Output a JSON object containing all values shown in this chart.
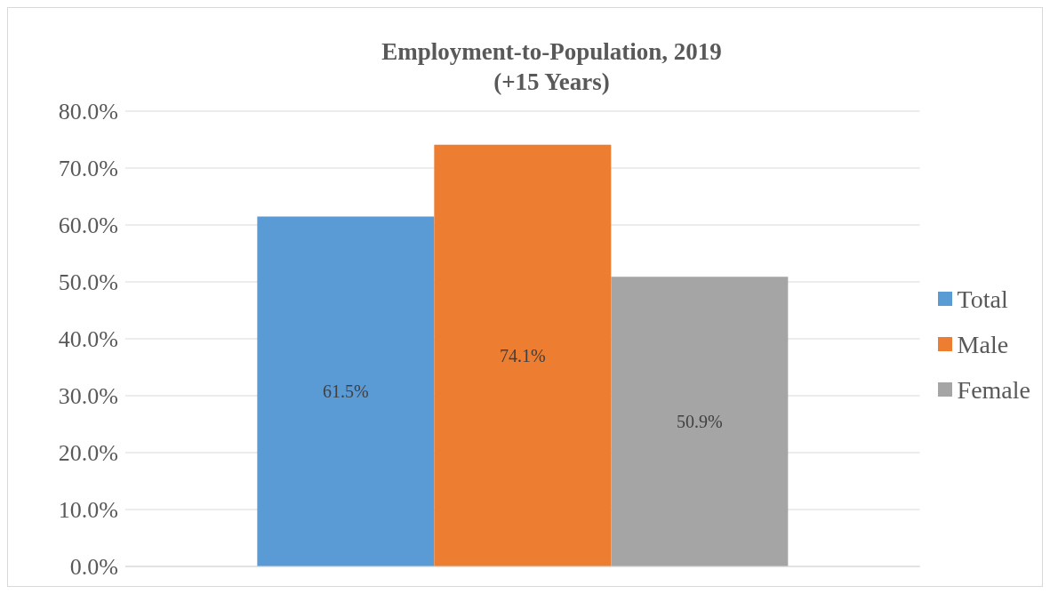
{
  "chart_data": {
    "type": "bar",
    "title": "Employment-to-Population, 2019",
    "subtitle": "(+15 Years)",
    "categories": [
      null
    ],
    "series": [
      {
        "name": "Total",
        "color": "#5b9bd5",
        "values": [
          61.5
        ],
        "value_labels": [
          "61.5%"
        ]
      },
      {
        "name": "Male",
        "color": "#ed7d31",
        "values": [
          74.1
        ],
        "value_labels": [
          "74.1%"
        ]
      },
      {
        "name": "Female",
        "color": "#a5a5a5",
        "values": [
          50.9
        ],
        "value_labels": [
          "50.9%"
        ]
      }
    ],
    "ylim": [
      0,
      80
    ],
    "yticks": [
      {
        "value": 0,
        "label": "0.0%"
      },
      {
        "value": 10,
        "label": "10.0%"
      },
      {
        "value": 20,
        "label": "20.0%"
      },
      {
        "value": 30,
        "label": "30.0%"
      },
      {
        "value": 40,
        "label": "40.0%"
      },
      {
        "value": 50,
        "label": "50.0%"
      },
      {
        "value": 60,
        "label": "60.0%"
      },
      {
        "value": 70,
        "label": "70.0%"
      },
      {
        "value": 80,
        "label": "80.0%"
      }
    ],
    "grid": "y",
    "legend": "right"
  }
}
